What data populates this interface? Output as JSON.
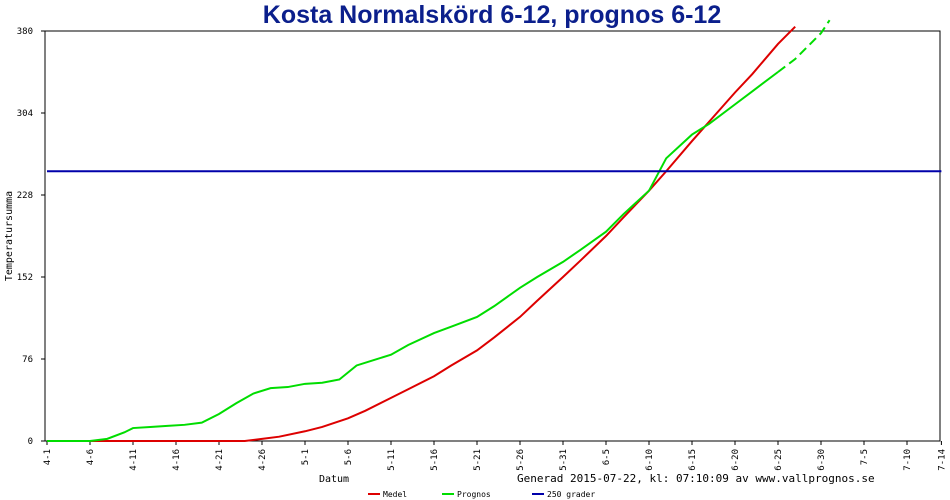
{
  "chart_data": {
    "type": "line",
    "title": "Kosta Normalskörd 6-12, prognos 6-12",
    "xlabel": "Datum",
    "ylabel": "Temperatursumma",
    "ylim": [
      0,
      380
    ],
    "y_ticks": [
      0,
      76,
      152,
      228,
      304,
      380
    ],
    "x_ticks": [
      "4-1",
      "4-6",
      "4-11",
      "4-16",
      "4-21",
      "4-26",
      "5-1",
      "5-6",
      "5-11",
      "5-16",
      "5-21",
      "5-26",
      "5-31",
      "6-5",
      "6-10",
      "6-15",
      "6-20",
      "6-25",
      "6-30",
      "7-5",
      "7-10",
      "7-14"
    ],
    "grid": false,
    "footer": "Generad 2015-07-22, kl: 07:10:09 av www.vallprognos.se",
    "legend_position": "bottom",
    "series": [
      {
        "name": "Medel",
        "color": "#dd0000",
        "style": "solid",
        "points": [
          [
            "4-1",
            0
          ],
          [
            "4-6",
            0
          ],
          [
            "4-11",
            0
          ],
          [
            "4-16",
            0
          ],
          [
            "4-21",
            0
          ],
          [
            "4-24",
            0
          ],
          [
            "4-26",
            2
          ],
          [
            "4-28",
            4
          ],
          [
            "5-1",
            9
          ],
          [
            "5-3",
            13
          ],
          [
            "5-6",
            21
          ],
          [
            "5-8",
            28
          ],
          [
            "5-11",
            40
          ],
          [
            "5-13",
            48
          ],
          [
            "5-16",
            60
          ],
          [
            "5-18",
            70
          ],
          [
            "5-21",
            84
          ],
          [
            "5-23",
            96
          ],
          [
            "5-26",
            115
          ],
          [
            "5-28",
            130
          ],
          [
            "5-31",
            152
          ],
          [
            "6-2",
            167
          ],
          [
            "6-5",
            190
          ],
          [
            "6-7",
            207
          ],
          [
            "6-10",
            232
          ],
          [
            "6-12",
            250
          ],
          [
            "6-15",
            278
          ],
          [
            "6-17",
            296
          ],
          [
            "6-20",
            323
          ],
          [
            "6-22",
            340
          ],
          [
            "6-25",
            368
          ],
          [
            "6-27",
            384
          ]
        ]
      },
      {
        "name": "Prognos",
        "color": "#00dd00",
        "style": "solid-then-dashed",
        "points": [
          [
            "4-1",
            0
          ],
          [
            "4-3",
            0
          ],
          [
            "4-6",
            0
          ],
          [
            "4-8",
            2
          ],
          [
            "4-10",
            8
          ],
          [
            "4-11",
            12
          ],
          [
            "4-13",
            13
          ],
          [
            "4-15",
            14
          ],
          [
            "4-17",
            15
          ],
          [
            "4-19",
            17
          ],
          [
            "4-21",
            25
          ],
          [
            "4-23",
            35
          ],
          [
            "4-25",
            44
          ],
          [
            "4-27",
            49
          ],
          [
            "4-29",
            50
          ],
          [
            "5-1",
            53
          ],
          [
            "5-3",
            54
          ],
          [
            "5-5",
            57
          ],
          [
            "5-7",
            70
          ],
          [
            "5-9",
            75
          ],
          [
            "5-11",
            80
          ],
          [
            "5-13",
            89
          ],
          [
            "5-16",
            100
          ],
          [
            "5-18",
            106
          ],
          [
            "5-21",
            115
          ],
          [
            "5-23",
            125
          ],
          [
            "5-26",
            142
          ],
          [
            "5-28",
            152
          ],
          [
            "5-31",
            166
          ],
          [
            "6-2",
            177
          ],
          [
            "6-5",
            194
          ],
          [
            "6-7",
            210
          ],
          [
            "6-10",
            232
          ],
          [
            "6-12",
            262
          ],
          [
            "6-15",
            284
          ],
          [
            "6-17",
            294
          ],
          [
            "6-20",
            312
          ],
          [
            "6-22",
            324
          ],
          [
            "6-25",
            342
          ],
          [
            "6-27",
            354
          ],
          [
            "6-30",
            378
          ],
          [
            "7-1",
            390
          ]
        ],
        "dashed_from": "6-25"
      },
      {
        "name": "250 grader",
        "color": "#0000aa",
        "style": "solid",
        "points": [
          [
            "4-1",
            250
          ],
          [
            "7-14",
            250
          ]
        ]
      }
    ]
  }
}
